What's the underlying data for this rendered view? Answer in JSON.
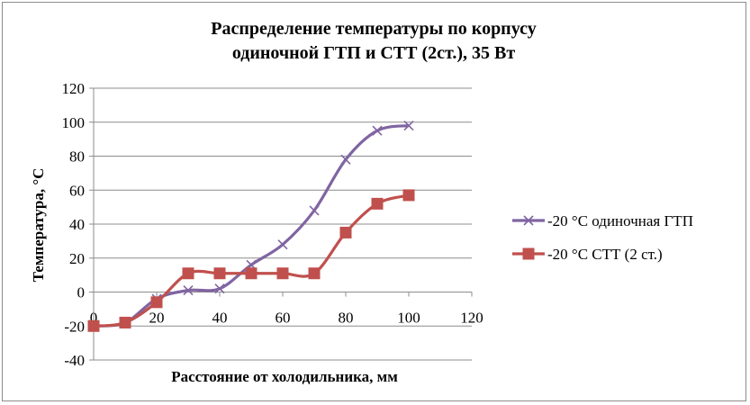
{
  "chart_data": {
    "type": "line",
    "title": "Распределение температуры по корпусу одиночной ГТП и СТТ (2ст.), 35 Вт",
    "title_lines": [
      "Распределение температуры по корпусу",
      "одиночной ГТП и СТТ (2ст.), 35 Вт"
    ],
    "xlabel": "Расстояние от холодильника, мм",
    "ylabel": "Температура, °С",
    "xlim": [
      0,
      120
    ],
    "ylim": [
      -40,
      120
    ],
    "xticks": [
      "0",
      "20",
      "40",
      "60",
      "80",
      "100",
      "120"
    ],
    "yticks": [
      "-40",
      "-20",
      "0",
      "20",
      "40",
      "60",
      "80",
      "100",
      "120"
    ],
    "grid": "horizontal",
    "legend_position": "right",
    "series": [
      {
        "name": "-20 °С одиночная ГТП",
        "marker": "x",
        "color": "#8064A2",
        "points": [
          [
            0,
            -20
          ],
          [
            10,
            -18
          ],
          [
            20,
            -4
          ],
          [
            30,
            1
          ],
          [
            40,
            2
          ],
          [
            50,
            16
          ],
          [
            60,
            28
          ],
          [
            70,
            48
          ],
          [
            80,
            78
          ],
          [
            90,
            95
          ],
          [
            100,
            98
          ]
        ]
      },
      {
        "name": "-20 °С СТТ (2 ст.)",
        "marker": "square",
        "color": "#C0504D",
        "points": [
          [
            0,
            -20
          ],
          [
            10,
            -18
          ],
          [
            20,
            -6
          ],
          [
            30,
            11
          ],
          [
            40,
            11
          ],
          [
            50,
            11
          ],
          [
            60,
            11
          ],
          [
            70,
            11
          ],
          [
            80,
            35
          ],
          [
            90,
            52
          ],
          [
            100,
            57
          ]
        ]
      }
    ]
  }
}
